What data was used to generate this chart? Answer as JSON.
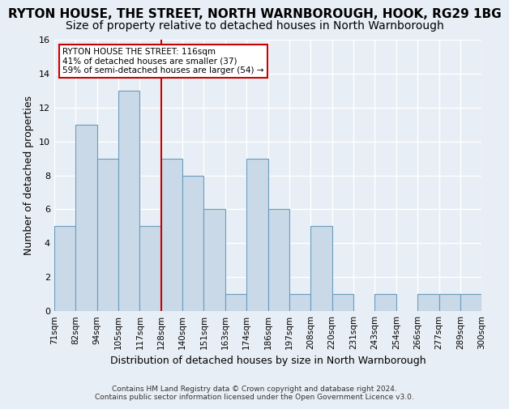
{
  "title": "RYTON HOUSE, THE STREET, NORTH WARNBOROUGH, HOOK, RG29 1BG",
  "subtitle": "Size of property relative to detached houses in North Warnborough",
  "xlabel": "Distribution of detached houses by size in North Warnborough",
  "ylabel": "Number of detached properties",
  "footer_line1": "Contains HM Land Registry data © Crown copyright and database right 2024.",
  "footer_line2": "Contains public sector information licensed under the Open Government Licence v3.0.",
  "bin_edges": [
    "71sqm",
    "82sqm",
    "94sqm",
    "105sqm",
    "117sqm",
    "128sqm",
    "140sqm",
    "151sqm",
    "163sqm",
    "174sqm",
    "186sqm",
    "197sqm",
    "208sqm",
    "220sqm",
    "231sqm",
    "243sqm",
    "254sqm",
    "266sqm",
    "277sqm",
    "289sqm",
    "300sqm"
  ],
  "bar_heights": [
    5,
    11,
    9,
    13,
    5,
    9,
    8,
    6,
    1,
    9,
    6,
    1,
    5,
    1,
    0,
    1,
    0,
    1,
    1,
    1
  ],
  "bar_color": "#c9d9e8",
  "bar_edge_color": "#6a9cbf",
  "vline_index": 4,
  "vline_color": "#cc0000",
  "annotation_line1": "RYTON HOUSE THE STREET: 116sqm",
  "annotation_line2": "41% of detached houses are smaller (37)",
  "annotation_line3": "59% of semi-detached houses are larger (54) →",
  "annotation_box_color": "#ffffff",
  "annotation_box_edge_color": "#cc0000",
  "ylim": [
    0,
    16
  ],
  "yticks": [
    0,
    2,
    4,
    6,
    8,
    10,
    12,
    14,
    16
  ],
  "background_color": "#e8eef5",
  "grid_color": "#ffffff",
  "title_fontsize": 11,
  "subtitle_fontsize": 10,
  "ylabel_fontsize": 9,
  "xlabel_fontsize": 9
}
